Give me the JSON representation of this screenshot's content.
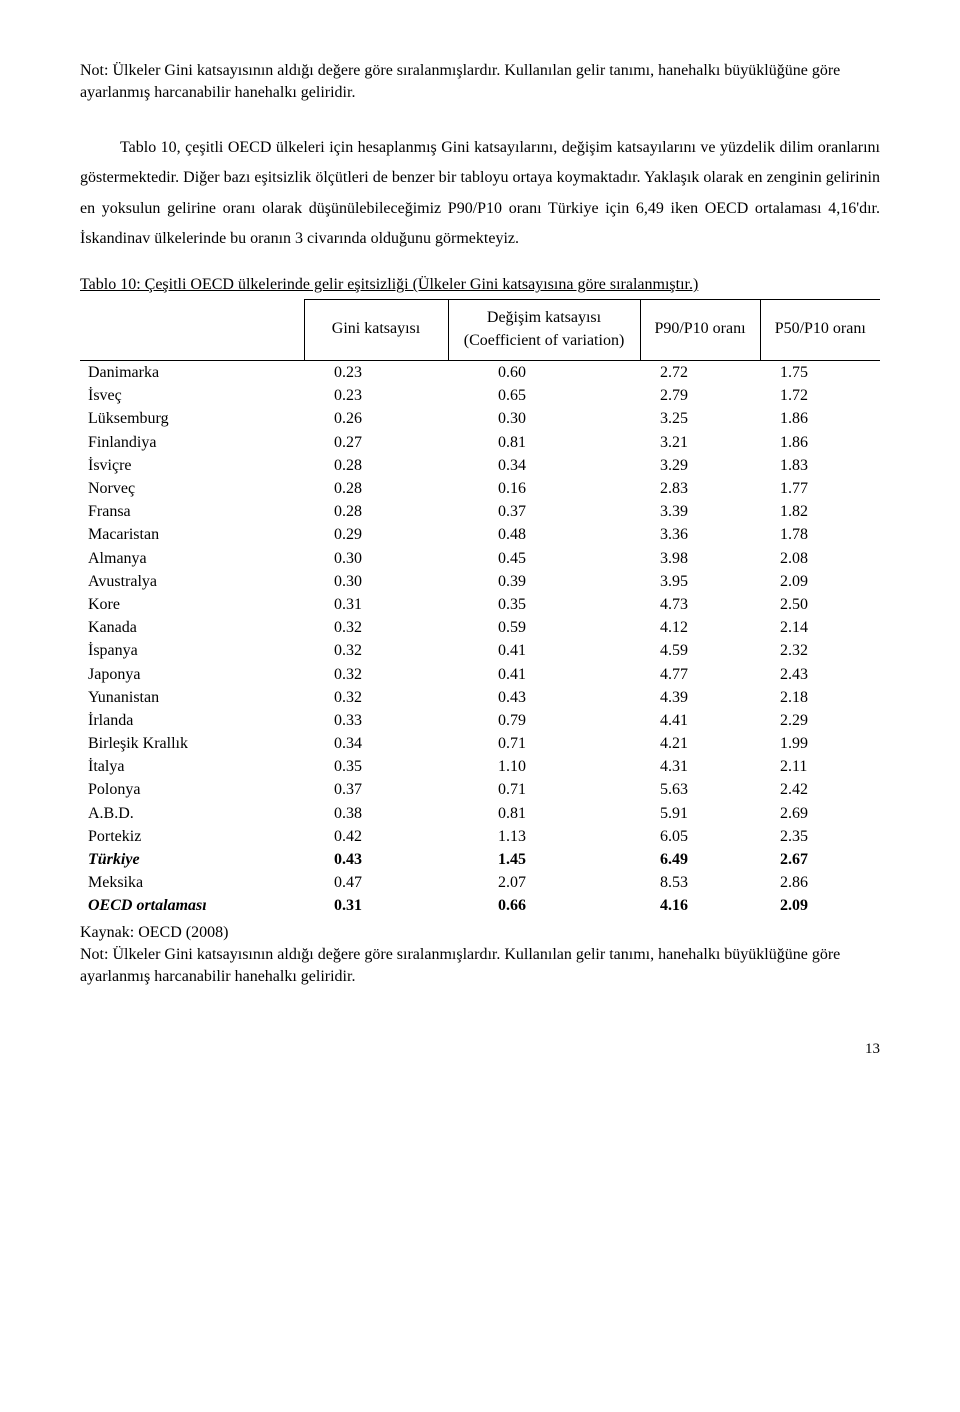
{
  "note_top": "Not: Ülkeler Gini katsayısının aldığı değere göre sıralanmışlardır. Kullanılan gelir tanımı, hanehalkı büyüklüğüne göre ayarlanmış harcanabilir hanehalkı geliridir.",
  "paragraph": "Tablo 10, çeşitli OECD ülkeleri için hesaplanmış Gini katsayılarını, değişim katsayılarını ve yüzdelik dilim oranlarını göstermektedir. Diğer bazı eşitsizlik ölçütleri de benzer bir tabloyu ortaya koymaktadır. Yaklaşık olarak en zenginin gelirinin en yoksulun gelirine oranı olarak düşünülebileceğimiz  P90/P10 oranı Türkiye için 6,49 iken OECD ortalaması 4,16'dır. İskandinav ülkelerinde bu oranın 3 civarında olduğunu görmekteyiz.",
  "table_caption": "Tablo 10: Çeşitli OECD ülkelerinde gelir eşitsizliği (Ülkeler Gini katsayısına göre sıralanmıştır.)",
  "headers": {
    "col1": "",
    "col2": "Gini katsayısı",
    "col3": "Değişim katsayısı (Coefficient of variation)",
    "col4": "P90/P10 oranı",
    "col5": "P50/P10 oranı"
  },
  "rows": [
    {
      "country": "Danimarka",
      "gini": "0.23",
      "cv": "0.60",
      "p90": "2.72",
      "p50": "1.75",
      "style": ""
    },
    {
      "country": "İsveç",
      "gini": "0.23",
      "cv": "0.65",
      "p90": "2.79",
      "p50": "1.72",
      "style": ""
    },
    {
      "country": "Lüksemburg",
      "gini": "0.26",
      "cv": "0.30",
      "p90": "3.25",
      "p50": "1.86",
      "style": ""
    },
    {
      "country": "Finlandiya",
      "gini": "0.27",
      "cv": "0.81",
      "p90": "3.21",
      "p50": "1.86",
      "style": ""
    },
    {
      "country": "İsviçre",
      "gini": "0.28",
      "cv": "0.34",
      "p90": "3.29",
      "p50": "1.83",
      "style": ""
    },
    {
      "country": "Norveç",
      "gini": "0.28",
      "cv": "0.16",
      "p90": "2.83",
      "p50": "1.77",
      "style": ""
    },
    {
      "country": "Fransa",
      "gini": "0.28",
      "cv": "0.37",
      "p90": "3.39",
      "p50": "1.82",
      "style": ""
    },
    {
      "country": "Macaristan",
      "gini": "0.29",
      "cv": "0.48",
      "p90": "3.36",
      "p50": "1.78",
      "style": ""
    },
    {
      "country": "Almanya",
      "gini": "0.30",
      "cv": "0.45",
      "p90": "3.98",
      "p50": "2.08",
      "style": ""
    },
    {
      "country": "Avustralya",
      "gini": "0.30",
      "cv": "0.39",
      "p90": "3.95",
      "p50": "2.09",
      "style": ""
    },
    {
      "country": "Kore",
      "gini": "0.31",
      "cv": "0.35",
      "p90": "4.73",
      "p50": "2.50",
      "style": ""
    },
    {
      "country": "Kanada",
      "gini": "0.32",
      "cv": "0.59",
      "p90": "4.12",
      "p50": "2.14",
      "style": ""
    },
    {
      "country": "İspanya",
      "gini": "0.32",
      "cv": "0.41",
      "p90": "4.59",
      "p50": "2.32",
      "style": ""
    },
    {
      "country": "Japonya",
      "gini": "0.32",
      "cv": "0.41",
      "p90": "4.77",
      "p50": "2.43",
      "style": ""
    },
    {
      "country": "Yunanistan",
      "gini": "0.32",
      "cv": "0.43",
      "p90": "4.39",
      "p50": "2.18",
      "style": ""
    },
    {
      "country": "İrlanda",
      "gini": "0.33",
      "cv": "0.79",
      "p90": "4.41",
      "p50": "2.29",
      "style": ""
    },
    {
      "country": "Birleşik Krallık",
      "gini": "0.34",
      "cv": "0.71",
      "p90": "4.21",
      "p50": "1.99",
      "style": ""
    },
    {
      "country": "İtalya",
      "gini": "0.35",
      "cv": "1.10",
      "p90": "4.31",
      "p50": "2.11",
      "style": ""
    },
    {
      "country": "Polonya",
      "gini": "0.37",
      "cv": "0.71",
      "p90": "5.63",
      "p50": "2.42",
      "style": ""
    },
    {
      "country": "A.B.D.",
      "gini": "0.38",
      "cv": "0.81",
      "p90": "5.91",
      "p50": "2.69",
      "style": ""
    },
    {
      "country": "Portekiz",
      "gini": "0.42",
      "cv": "1.13",
      "p90": "6.05",
      "p50": "2.35",
      "style": ""
    },
    {
      "country": "Türkiye",
      "gini": "0.43",
      "cv": "1.45",
      "p90": "6.49",
      "p50": "2.67",
      "style": "italic-bold-row"
    },
    {
      "country": "Meksika",
      "gini": "0.47",
      "cv": "2.07",
      "p90": "8.53",
      "p50": "2.86",
      "style": ""
    },
    {
      "country": "OECD ortalaması",
      "gini": "0.31",
      "cv": "0.66",
      "p90": "4.16",
      "p50": "2.09",
      "style": "italic-bold-row"
    }
  ],
  "source": "Kaynak: OECD (2008)",
  "note_bottom": "Not: Ülkeler Gini katsayısının aldığı değere göre sıralanmışlardır. Kullanılan gelir tanımı, hanehalkı büyüklüğüne göre ayarlanmış harcanabilir hanehalkı geliridir.",
  "page_num": "13"
}
